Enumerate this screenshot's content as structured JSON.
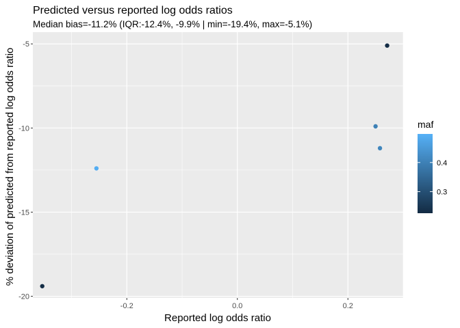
{
  "chart_data": {
    "type": "scatter",
    "title": "Predicted versus reported log odds ratios",
    "subtitle": "Median bias=-11.2% (IQR:-12.4%, -9.9% | min=-19.4%, max=-5.1%)",
    "xlabel": "Reported log odds ratio",
    "ylabel": "% deviation of predicted from reported log odds ratio",
    "xlim": [
      -0.37,
      0.3
    ],
    "ylim": [
      -20.1,
      -4.3
    ],
    "x_ticks": [
      -0.2,
      0.0,
      0.2
    ],
    "x_tick_labels": [
      "-0.2",
      "0.0",
      "0.2"
    ],
    "y_ticks": [
      -20,
      -15,
      -10,
      -5
    ],
    "y_tick_labels": [
      "-20",
      "-15",
      "-10",
      "-5"
    ],
    "grid": true,
    "legend": {
      "title": "maf",
      "placement": "right",
      "range": [
        0.226,
        0.498
      ],
      "ticks": [
        0.3,
        0.4
      ],
      "tick_labels": [
        "0.3",
        "0.4"
      ],
      "color_low": "#132B43",
      "color_high": "#56B1F7"
    },
    "points": [
      {
        "x": -0.353,
        "y": -19.4,
        "maf": 0.23
      },
      {
        "x": -0.255,
        "y": -12.4,
        "maf": 0.49
      },
      {
        "x": 0.25,
        "y": -9.9,
        "maf": 0.4
      },
      {
        "x": 0.258,
        "y": -11.2,
        "maf": 0.41
      },
      {
        "x": 0.271,
        "y": -5.1,
        "maf": 0.23
      }
    ]
  }
}
